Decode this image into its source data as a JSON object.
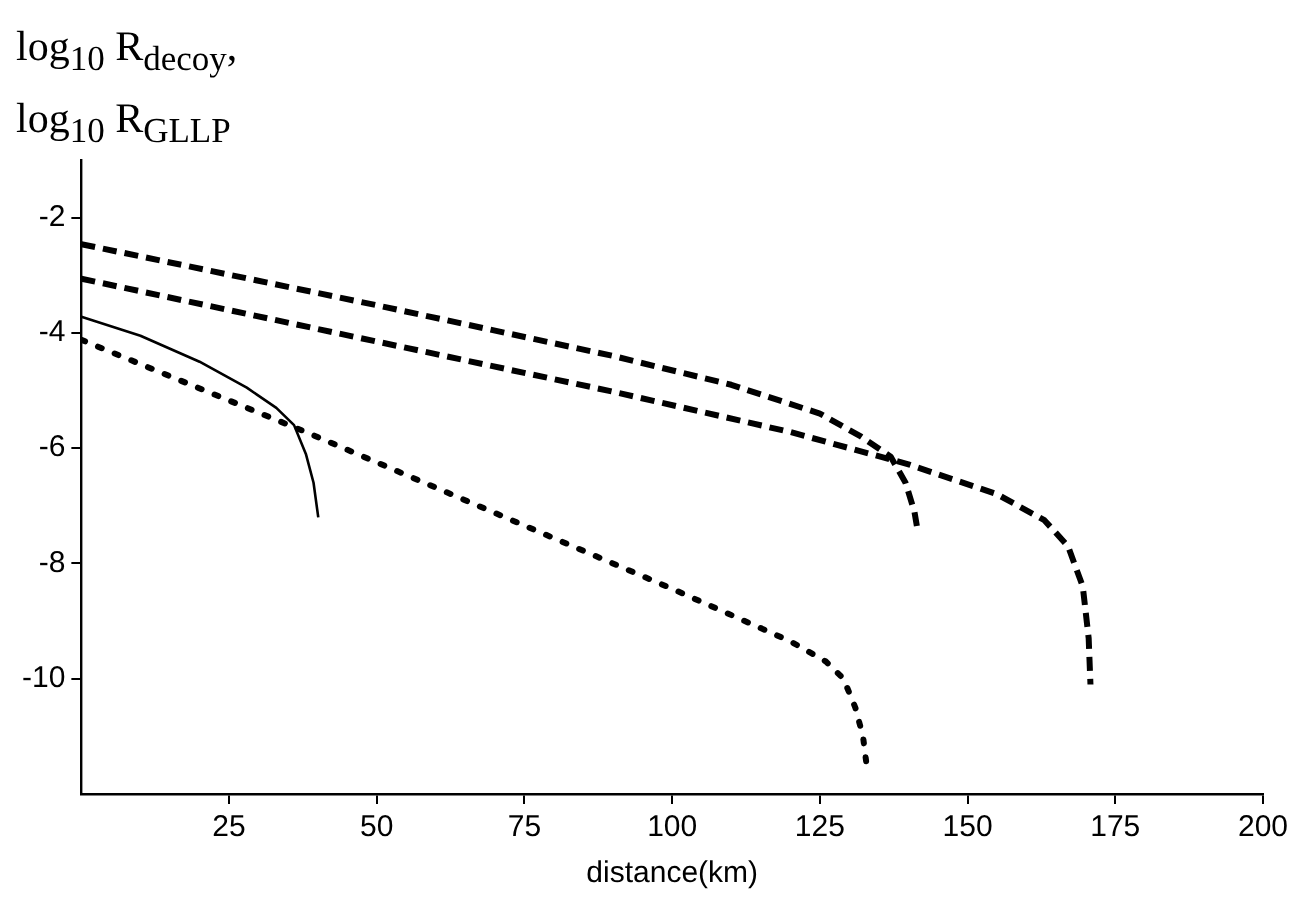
{
  "chart_data": {
    "type": "line",
    "ylabel": "log$_{10}$ R$_{decoy}$, log$_{10}$ R$_{GLLP}$",
    "xlabel": "distance(km)",
    "xlim": [
      0,
      200
    ],
    "xticks": [
      25,
      50,
      75,
      100,
      125,
      150,
      175,
      200
    ],
    "ylim": [
      -12,
      -1
    ],
    "yticks": [
      -2,
      -4,
      -6,
      -8,
      -10
    ],
    "grid": false,
    "legend": false,
    "marker": "none",
    "series": [
      {
        "color": "#000000",
        "line_style": "dashed",
        "x": [
          0,
          50,
          90,
          110,
          125,
          132,
          137,
          139.5,
          141,
          141.5
        ],
        "values": [
          -2.46,
          -3.52,
          -4.4,
          -4.9,
          -5.4,
          -5.8,
          -6.15,
          -6.6,
          -7.1,
          -7.4
        ]
      },
      {
        "color": "#000000",
        "line_style": "dashed",
        "x": [
          0,
          50,
          90,
          120,
          140,
          155,
          163,
          167,
          169.5,
          170.5,
          170.8
        ],
        "values": [
          -3.06,
          -4.15,
          -5.02,
          -5.72,
          -6.28,
          -6.8,
          -7.25,
          -7.7,
          -8.4,
          -9.3,
          -10.1
        ]
      },
      {
        "color": "#000000",
        "line_style": "solid",
        "x": [
          0,
          10,
          20,
          28,
          33,
          36,
          38,
          39.3,
          40.1
        ],
        "values": [
          -3.72,
          -4.05,
          -4.5,
          -4.95,
          -5.3,
          -5.6,
          -6.1,
          -6.6,
          -7.2
        ]
      },
      {
        "color": "#000000",
        "line_style": "dotted",
        "x": [
          0,
          38,
          100,
          120,
          126,
          129,
          131,
          132.3,
          132.9
        ],
        "values": [
          -4.12,
          -5.72,
          -8.44,
          -9.35,
          -9.7,
          -10,
          -10.5,
          -11,
          -11.49
        ]
      }
    ]
  }
}
